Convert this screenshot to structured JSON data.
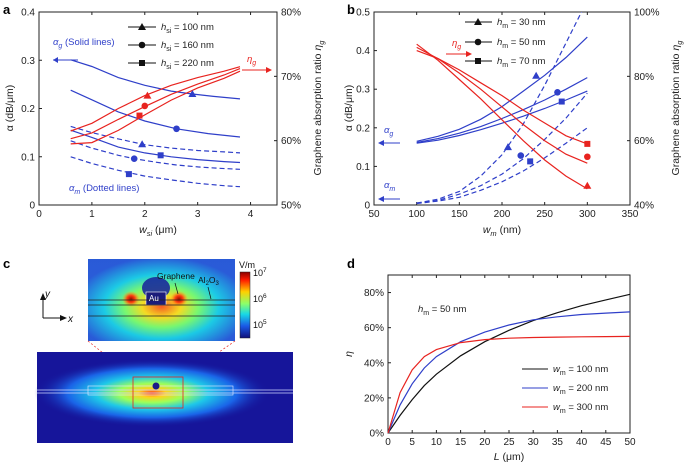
{
  "colors": {
    "blue": "#2f3fc9",
    "red": "#e8231f",
    "black": "#111111",
    "axis": "#222222"
  },
  "chart_data": [
    {
      "panel": "a",
      "type": "line",
      "xlabel": "w_si (μm)",
      "ylabel_left": "α (dB/μm)",
      "ylabel_right": "Graphene absorption ratio η_g",
      "xlim": [
        0,
        4.5
      ],
      "ylim_left": [
        0,
        0.4
      ],
      "ylim_right": [
        50,
        80
      ],
      "x_ticks": [
        0,
        1,
        2,
        3,
        4
      ],
      "y_ticks_left": [
        0,
        0.1,
        0.2,
        0.3,
        0.4
      ],
      "y_ticks_right": [
        "50%",
        "60%",
        "70%",
        "80%"
      ],
      "legend": [
        "h_si = 100 nm",
        "h_si = 160 nm",
        "h_si = 220 nm"
      ],
      "annotations": {
        "alpha_g": "α_g (Solid lines)",
        "alpha_m": "α_m (Dotted lines)",
        "eta_g": "η_g"
      },
      "series": [
        {
          "name": "α_g h_si=100 nm",
          "axis": "left",
          "style": "solid",
          "color": "blue",
          "marker": "triangle",
          "x": [
            0.6,
            1.0,
            1.5,
            2.0,
            2.5,
            2.9,
            3.3,
            3.8
          ],
          "y": [
            0.301,
            0.287,
            0.264,
            0.248,
            0.236,
            0.23,
            0.225,
            0.22
          ],
          "marker_at": [
            2.9,
            0.23
          ]
        },
        {
          "name": "α_g h_si=160 nm",
          "axis": "left",
          "style": "solid",
          "color": "blue",
          "marker": "circle",
          "x": [
            0.6,
            1.0,
            1.5,
            2.0,
            2.6,
            3.2,
            3.8
          ],
          "y": [
            0.238,
            0.218,
            0.193,
            0.174,
            0.158,
            0.148,
            0.141
          ],
          "marker_at": [
            2.6,
            0.158
          ]
        },
        {
          "name": "α_g h_si=220 nm",
          "axis": "left",
          "style": "solid",
          "color": "blue",
          "marker": "square",
          "x": [
            0.6,
            1.0,
            1.5,
            2.0,
            2.5,
            3.0,
            3.5,
            3.8
          ],
          "y": [
            0.155,
            0.14,
            0.12,
            0.108,
            0.1,
            0.094,
            0.09,
            0.088
          ],
          "marker_at": [
            2.3,
            0.103
          ]
        },
        {
          "name": "α_m h_si=100 nm",
          "axis": "left",
          "style": "dashed",
          "color": "blue",
          "marker": "triangle",
          "x": [
            0.6,
            1.0,
            1.5,
            2.0,
            2.5,
            3.0,
            3.5,
            3.8
          ],
          "y": [
            0.163,
            0.15,
            0.137,
            0.125,
            0.118,
            0.113,
            0.11,
            0.108
          ],
          "marker_at": [
            1.95,
            0.126
          ]
        },
        {
          "name": "α_m h_si=160 nm",
          "axis": "left",
          "style": "dashed",
          "color": "blue",
          "marker": "circle",
          "x": [
            0.6,
            1.0,
            1.5,
            1.8,
            2.2,
            2.6,
            3.0,
            3.4,
            3.8
          ],
          "y": [
            0.133,
            0.118,
            0.103,
            0.096,
            0.089,
            0.083,
            0.079,
            0.076,
            0.074
          ],
          "marker_at": [
            1.8,
            0.096
          ]
        },
        {
          "name": "α_m h_si=220 nm",
          "axis": "left",
          "style": "dashed",
          "color": "blue",
          "marker": "square",
          "x": [
            0.6,
            1.0,
            1.5,
            2.0,
            2.5,
            3.0,
            3.5,
            3.8
          ],
          "y": [
            0.1,
            0.086,
            0.072,
            0.06,
            0.052,
            0.045,
            0.04,
            0.038
          ],
          "marker_at": [
            1.7,
            0.064
          ]
        },
        {
          "name": "η_g h_si=100 nm",
          "axis": "right",
          "style": "solid",
          "color": "red",
          "marker": "triangle",
          "x": [
            0.6,
            1.0,
            1.5,
            2.0,
            2.5,
            3.0,
            3.5,
            3.8
          ],
          "y": [
            61.5,
            62.7,
            65.0,
            67.0,
            68.6,
            69.8,
            70.8,
            71.5
          ],
          "marker_at": [
            2.05,
            67.0
          ]
        },
        {
          "name": "η_g h_si=160 nm",
          "axis": "right",
          "style": "solid",
          "color": "red",
          "marker": "circle",
          "x": [
            0.6,
            1.0,
            1.5,
            2.0,
            2.5,
            3.0,
            3.5,
            3.8
          ],
          "y": [
            60.3,
            61.2,
            63.3,
            65.3,
            67.2,
            68.8,
            70.2,
            71.2
          ],
          "marker_at": [
            2.0,
            65.4
          ]
        },
        {
          "name": "η_g h_si=220 nm",
          "axis": "right",
          "style": "solid",
          "color": "red",
          "marker": "square",
          "x": [
            0.6,
            1.0,
            1.5,
            2.0,
            2.5,
            3.0,
            3.5,
            3.8
          ],
          "y": [
            59.5,
            59.7,
            61.6,
            64.0,
            66.3,
            68.2,
            69.7,
            70.8
          ],
          "marker_at": [
            1.9,
            63.9
          ]
        }
      ]
    },
    {
      "panel": "b",
      "type": "line",
      "xlabel": "w_m (nm)",
      "ylabel_left": "α (dB/μm)",
      "ylabel_right": "Graphene absorption ratio η_g",
      "xlim": [
        50,
        350
      ],
      "ylim_left": [
        0,
        0.5
      ],
      "ylim_right": [
        40,
        100
      ],
      "x_ticks": [
        50,
        100,
        150,
        200,
        250,
        300,
        350
      ],
      "y_ticks_left": [
        0,
        0.1,
        0.2,
        0.3,
        0.4,
        0.5
      ],
      "y_ticks_right": [
        "40%",
        "60%",
        "80%",
        "100%"
      ],
      "legend": [
        "h_m = 30 nm",
        "h_m = 50 nm",
        "h_m = 70 nm"
      ],
      "annotations": {
        "alpha_g": "α_g",
        "alpha_m": "α_m",
        "eta_g": "η_g"
      },
      "series": [
        {
          "name": "α_g h_m=30 nm",
          "axis": "left",
          "style": "solid",
          "color": "blue",
          "marker": "triangle",
          "x": [
            100,
            125,
            150,
            175,
            200,
            225,
            250,
            275,
            300
          ],
          "y": [
            0.165,
            0.178,
            0.196,
            0.222,
            0.255,
            0.295,
            0.336,
            0.382,
            0.435
          ],
          "marker_at": [
            240,
            0.335
          ]
        },
        {
          "name": "α_g h_m=50 nm",
          "axis": "left",
          "style": "solid",
          "color": "blue",
          "marker": "circle",
          "x": [
            100,
            125,
            150,
            175,
            200,
            225,
            250,
            275,
            300
          ],
          "y": [
            0.162,
            0.172,
            0.186,
            0.203,
            0.224,
            0.247,
            0.272,
            0.3,
            0.33
          ],
          "marker_at": [
            265,
            0.292
          ]
        },
        {
          "name": "α_g h_m=70 nm",
          "axis": "left",
          "style": "solid",
          "color": "blue",
          "marker": "square",
          "x": [
            100,
            125,
            150,
            175,
            200,
            225,
            250,
            275,
            300
          ],
          "y": [
            0.16,
            0.168,
            0.18,
            0.195,
            0.212,
            0.23,
            0.25,
            0.272,
            0.295
          ],
          "marker_at": [
            270,
            0.268
          ]
        },
        {
          "name": "α_m h_m=30 nm",
          "axis": "left",
          "style": "dashed",
          "color": "blue",
          "marker": "triangle",
          "x": [
            100,
            125,
            150,
            175,
            200,
            225,
            250,
            275,
            300
          ],
          "y": [
            0.005,
            0.015,
            0.035,
            0.075,
            0.13,
            0.21,
            0.31,
            0.42,
            0.53
          ],
          "marker_at": [
            207,
            0.15
          ]
        },
        {
          "name": "α_m h_m=50 nm",
          "axis": "left",
          "style": "dashed",
          "color": "blue",
          "marker": "circle",
          "x": [
            100,
            125,
            150,
            175,
            200,
            225,
            250,
            275,
            300
          ],
          "y": [
            0.005,
            0.012,
            0.028,
            0.05,
            0.08,
            0.12,
            0.17,
            0.225,
            0.29
          ],
          "marker_at": [
            222,
            0.128
          ]
        },
        {
          "name": "α_m h_m=70 nm",
          "axis": "left",
          "style": "dashed",
          "color": "blue",
          "marker": "square",
          "x": [
            100,
            125,
            150,
            175,
            200,
            225,
            250,
            275,
            300
          ],
          "y": [
            0.004,
            0.01,
            0.02,
            0.038,
            0.06,
            0.088,
            0.122,
            0.16,
            0.2
          ],
          "marker_at": [
            233,
            0.113
          ]
        },
        {
          "name": "η_g h_m=30 nm",
          "axis": "right",
          "style": "solid",
          "color": "red",
          "marker": "triangle",
          "x": [
            100,
            125,
            150,
            175,
            200,
            225,
            250,
            275,
            300
          ],
          "y": [
            90.0,
            85.0,
            79.0,
            73.0,
            66.5,
            60.0,
            54.0,
            49.0,
            45.0
          ],
          "marker_at": [
            300,
            46.0
          ]
        },
        {
          "name": "η_g h_m=50 nm",
          "axis": "right",
          "style": "solid",
          "color": "red",
          "marker": "circle",
          "x": [
            100,
            125,
            150,
            175,
            200,
            225,
            250,
            275,
            300
          ],
          "y": [
            89.0,
            85.5,
            81.0,
            76.0,
            70.5,
            65.0,
            60.0,
            55.8,
            53.0
          ],
          "marker_at": [
            300,
            55.0
          ]
        },
        {
          "name": "η_g h_m=70 nm",
          "axis": "right",
          "style": "solid",
          "color": "red",
          "marker": "square",
          "x": [
            100,
            125,
            150,
            175,
            200,
            225,
            250,
            275,
            300
          ],
          "y": [
            88.0,
            85.5,
            82.0,
            78.0,
            74.0,
            69.5,
            65.5,
            61.5,
            59.0
          ],
          "marker_at": [
            300,
            59.0
          ]
        }
      ]
    },
    {
      "panel": "c",
      "type": "heatmap",
      "colorbar_unit": "V/m",
      "colorbar_ticks": [
        "10^7",
        "10^6",
        "10^5"
      ],
      "labels": {
        "metal": "Au",
        "graphene": "Graphene",
        "oxide": "Al2O3",
        "axis_y": "y",
        "axis_x": "x"
      }
    },
    {
      "panel": "d",
      "type": "line",
      "xlabel": "L (μm)",
      "ylabel": "η",
      "xlim": [
        0,
        50
      ],
      "ylim": [
        0,
        90
      ],
      "x_ticks": [
        0,
        5,
        10,
        15,
        20,
        25,
        30,
        35,
        40,
        45,
        50
      ],
      "y_ticks": [
        "0%",
        "20%",
        "40%",
        "60%",
        "80%"
      ],
      "annotation": "h_m = 50 nm",
      "series": [
        {
          "name": "w_m = 100 nm",
          "color": "black",
          "x": [
            0,
            2.5,
            5,
            7.5,
            10,
            15,
            20,
            25,
            30,
            35,
            40,
            45,
            50
          ],
          "y": [
            0,
            10,
            19,
            27,
            33.5,
            44,
            52,
            58.5,
            64,
            68.5,
            72.5,
            75.8,
            79
          ]
        },
        {
          "name": "w_m = 200 nm",
          "color": "blue",
          "x": [
            0,
            2.5,
            5,
            7.5,
            10,
            15,
            20,
            25,
            30,
            35,
            40,
            45,
            50
          ],
          "y": [
            0,
            16,
            28,
            37,
            43.5,
            52,
            57.5,
            61.5,
            64.5,
            66.2,
            67.5,
            68.3,
            69
          ]
        },
        {
          "name": "w_m = 300 nm",
          "color": "red",
          "x": [
            0,
            2.5,
            5,
            7.5,
            10,
            15,
            20,
            25,
            30,
            35,
            40,
            45,
            50
          ],
          "y": [
            0,
            23,
            36,
            43.5,
            47.5,
            51.5,
            53.2,
            54,
            54.4,
            54.6,
            54.8,
            54.9,
            55
          ]
        }
      ]
    }
  ]
}
